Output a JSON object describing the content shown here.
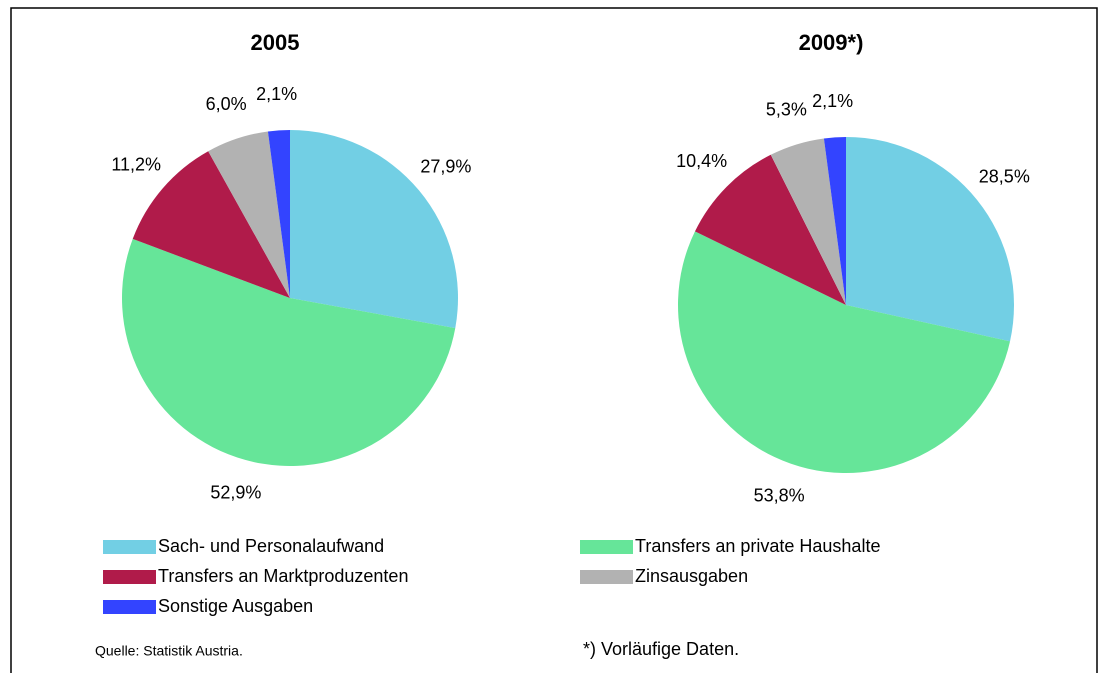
{
  "chart_data": [
    {
      "type": "pie",
      "title": "2005",
      "categories": [
        "Sach- und Personalaufwand",
        "Transfers an private Haushalte",
        "Transfers an Marktproduzenten",
        "Zinsausgaben",
        "Sonstige Ausgaben"
      ],
      "values": [
        27.9,
        52.9,
        11.2,
        6.0,
        2.1
      ],
      "value_labels": [
        "27,9%",
        "52,9%",
        "11,2%",
        "6,0%",
        "2,1%"
      ],
      "colors": [
        "#72cfe4",
        "#66e599",
        "#b01b4a",
        "#b2b2b2",
        "#3344ff"
      ]
    },
    {
      "type": "pie",
      "title": "2009*)",
      "categories": [
        "Sach- und Personalaufwand",
        "Transfers an private Haushalte",
        "Transfers an Marktproduzenten",
        "Zinsausgaben",
        "Sonstige Ausgaben"
      ],
      "values": [
        28.5,
        53.8,
        10.4,
        5.3,
        2.1
      ],
      "value_labels": [
        "28,5%",
        "53,8%",
        "10,4%",
        "5,3%",
        "2,1%"
      ],
      "colors": [
        "#72cfe4",
        "#66e599",
        "#b01b4a",
        "#b2b2b2",
        "#3344ff"
      ]
    }
  ],
  "source": "Quelle: Statistik Austria.",
  "note": "*) Vorläufige Daten."
}
